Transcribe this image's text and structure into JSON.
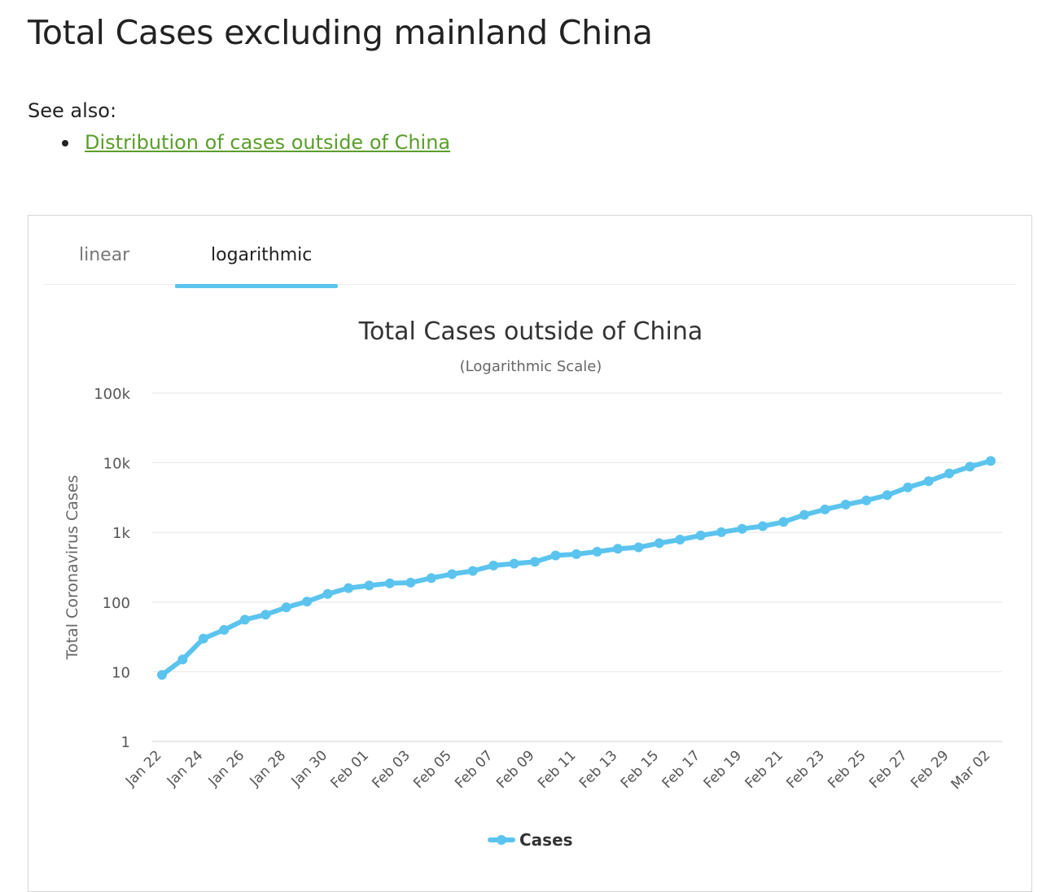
{
  "page": {
    "title": "Total Cases excluding mainland China",
    "see_also_label": "See also:",
    "links": [
      "Distribution of cases outside of China"
    ]
  },
  "tabs": {
    "linear_label": "linear",
    "log_label": "logarithmic",
    "active": "logarithmic"
  },
  "colors": {
    "series": "#5bc4ee",
    "link": "#5a9e2a",
    "grid": "#e6e6e6"
  },
  "chart_data": {
    "type": "line",
    "title": "Total Cases outside of China",
    "subtitle": "(Logarithmic Scale)",
    "xlabel": "",
    "ylabel": "Total Coronavirus Cases",
    "y_scale": "log",
    "ylim": [
      1,
      100000
    ],
    "y_ticks": [
      1,
      10,
      100,
      1000,
      10000,
      100000
    ],
    "y_tick_labels": [
      "1",
      "10",
      "100",
      "1k",
      "10k",
      "100k"
    ],
    "grid": true,
    "legend_position": "bottom-center",
    "x_tick_labels": [
      "Jan 22",
      "Jan 24",
      "Jan 26",
      "Jan 28",
      "Jan 30",
      "Feb 01",
      "Feb 03",
      "Feb 05",
      "Feb 07",
      "Feb 09",
      "Feb 11",
      "Feb 13",
      "Feb 15",
      "Feb 17",
      "Feb 19",
      "Feb 21",
      "Feb 23",
      "Feb 25",
      "Feb 27",
      "Feb 29",
      "Mar 02"
    ],
    "x": [
      "Jan 22",
      "Jan 23",
      "Jan 24",
      "Jan 25",
      "Jan 26",
      "Jan 27",
      "Jan 28",
      "Jan 29",
      "Jan 30",
      "Jan 31",
      "Feb 01",
      "Feb 02",
      "Feb 03",
      "Feb 04",
      "Feb 05",
      "Feb 06",
      "Feb 07",
      "Feb 08",
      "Feb 09",
      "Feb 10",
      "Feb 11",
      "Feb 12",
      "Feb 13",
      "Feb 14",
      "Feb 15",
      "Feb 16",
      "Feb 17",
      "Feb 18",
      "Feb 19",
      "Feb 20",
      "Feb 21",
      "Feb 22",
      "Feb 23",
      "Feb 24",
      "Feb 25",
      "Feb 26",
      "Feb 27",
      "Feb 28",
      "Feb 29",
      "Mar 01",
      "Mar 02"
    ],
    "series": [
      {
        "name": "Cases",
        "values": [
          9,
          15,
          30,
          40,
          56,
          66,
          84,
          102,
          131,
          159,
          173,
          186,
          190,
          222,
          252,
          280,
          335,
          357,
          380,
          467,
          488,
          529,
          582,
          611,
          702,
          789,
          905,
          1007,
          1130,
          1230,
          1415,
          1788,
          2137,
          2510,
          2879,
          3428,
          4423,
          5440,
          7006,
          8787,
          10608
        ]
      }
    ]
  }
}
